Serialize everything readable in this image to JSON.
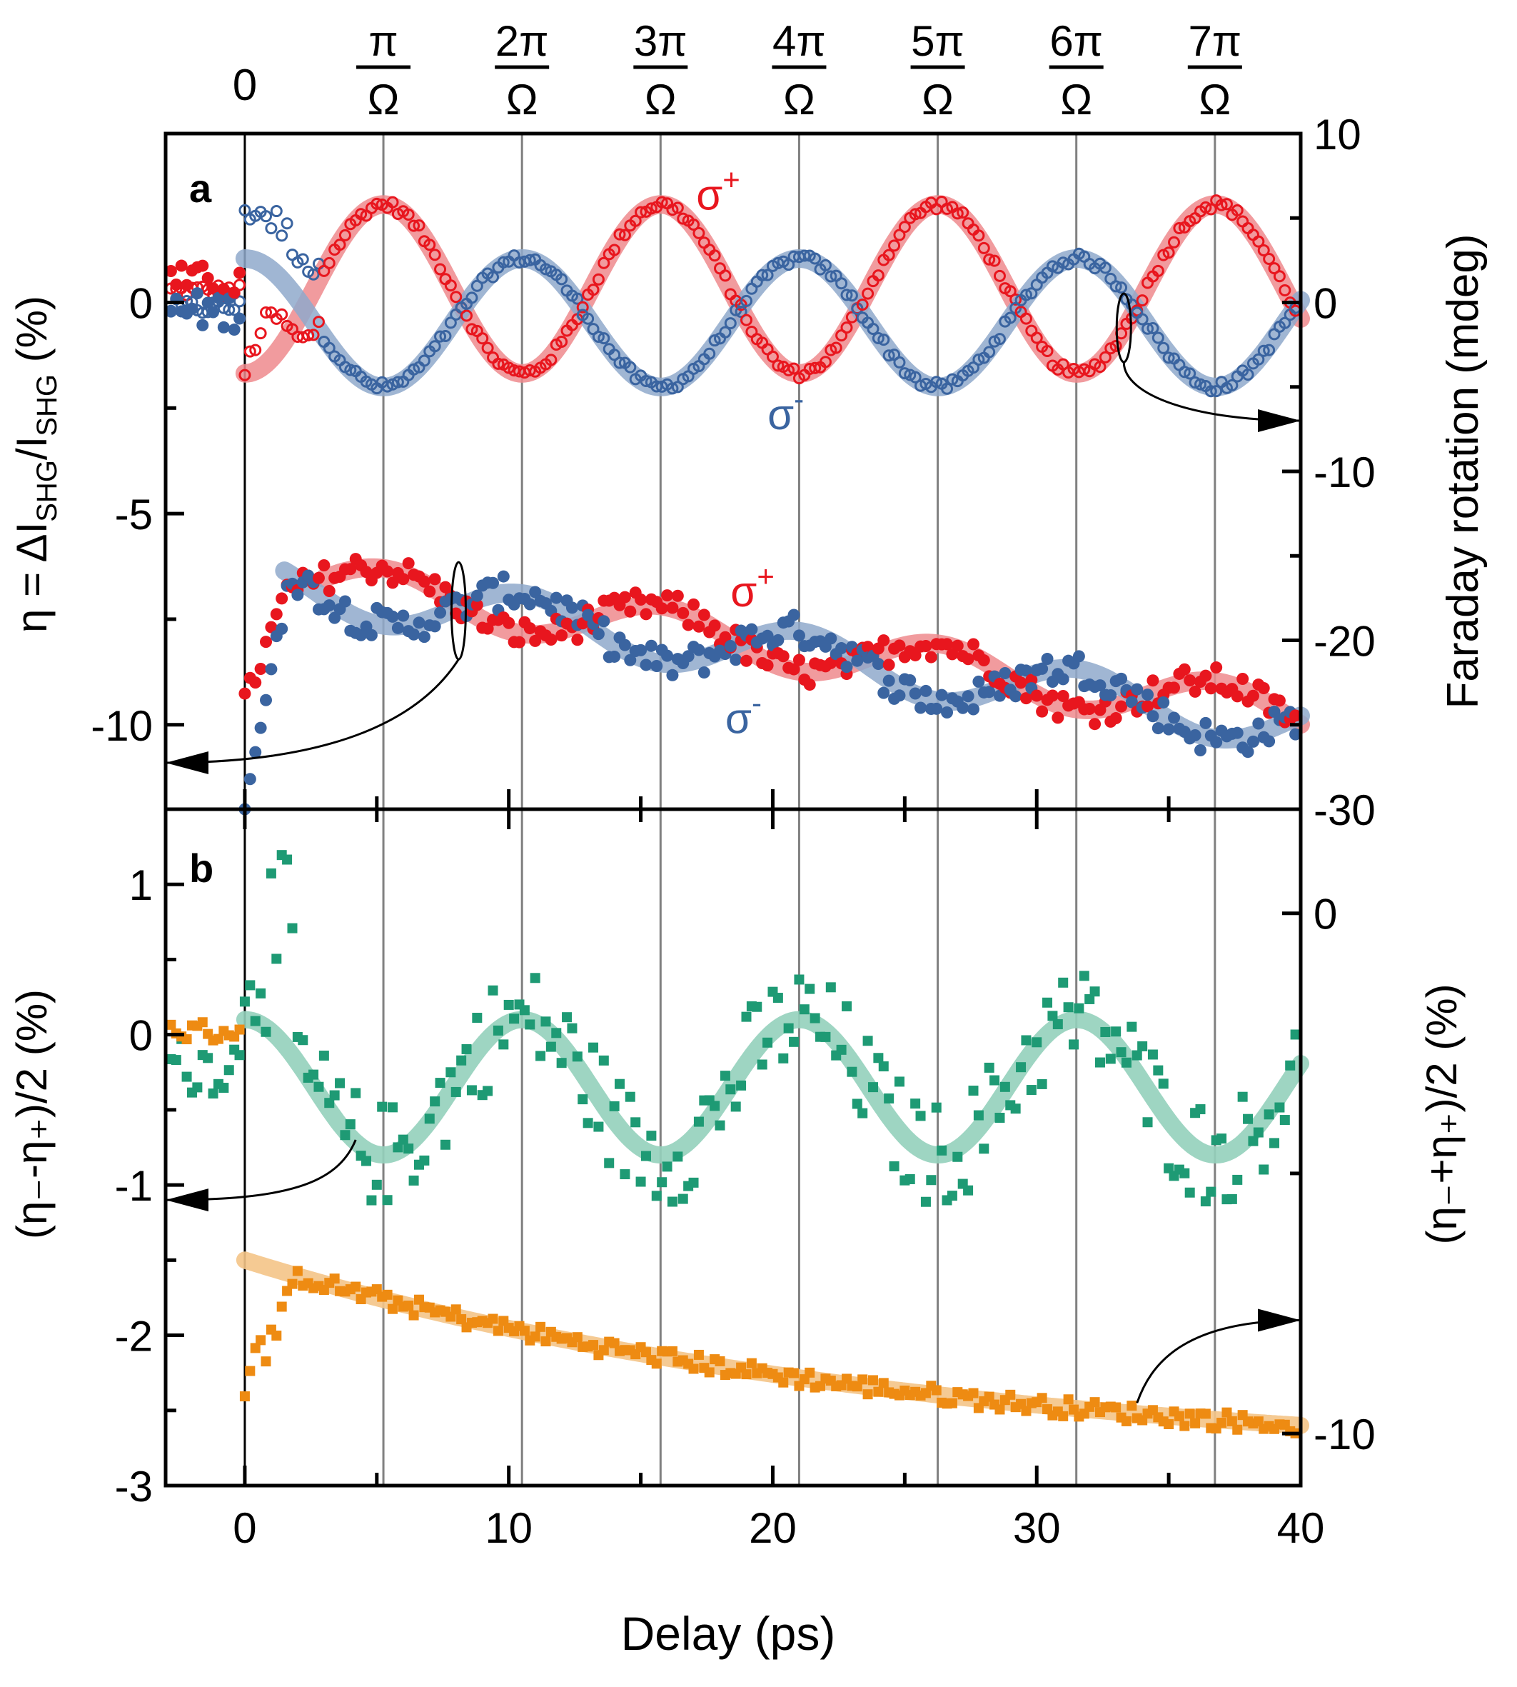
{
  "colors": {
    "sigma_plus": "#e8161e",
    "sigma_minus": "#3a64a0",
    "difference": "#1e9a74",
    "sum": "#ee8b12",
    "sigma_plus_fit": "#ef8a8d",
    "sigma_minus_fit": "#8fa9cb",
    "difference_fit": "#93d0bb",
    "sum_fit": "#f4c487",
    "axis": "#000000",
    "guide": "#808080"
  },
  "chart_data": [
    {
      "panel": "a",
      "type": "scatter",
      "panel_label": "a",
      "xlabel": "Delay (ps)",
      "ylabel_left_parts": [
        "η = ΔI",
        "SHG",
        "/I",
        "SHG",
        " (%)"
      ],
      "ylabel_right": "Faraday rotation (mdeg)",
      "xlim": [
        -3,
        40
      ],
      "ylim_left": [
        -12,
        4
      ],
      "ylim_right": [
        -30,
        10
      ],
      "yticks_left": [
        0,
        -5,
        -10
      ],
      "yticks_right": [
        10,
        0,
        -10,
        -20,
        -30
      ],
      "top_axis_labels": [
        {
          "num": "0",
          "den": "",
          "x": 0
        },
        {
          "num": "π",
          "den": "Ω",
          "x": 5.25
        },
        {
          "num": "2π",
          "den": "Ω",
          "x": 10.5
        },
        {
          "num": "3π",
          "den": "Ω",
          "x": 15.75
        },
        {
          "num": "4π",
          "den": "Ω",
          "x": 21.0
        },
        {
          "num": "5π",
          "den": "Ω",
          "x": 26.25
        },
        {
          "num": "6π",
          "den": "Ω",
          "x": 31.5
        },
        {
          "num": "7π",
          "den": "Ω",
          "x": 36.75
        }
      ],
      "guide_lines_x": [
        0,
        5.25,
        10.5,
        15.75,
        21.0,
        26.25,
        31.5,
        36.75
      ],
      "annotations": [
        {
          "text": "σ",
          "sup": "+",
          "x": 17.1,
          "y": 2.2,
          "series": "sigma_plus"
        },
        {
          "text": "σ",
          "sup": "-",
          "x": 19.8,
          "y": -3.0,
          "series": "sigma_minus"
        },
        {
          "text": "σ",
          "sup": "+",
          "x": 18.4,
          "y": -7.2,
          "series": "sigma_plus"
        },
        {
          "text": "σ",
          "sup": "-",
          "x": 18.2,
          "y": -10.2,
          "series": "sigma_minus"
        }
      ],
      "series": [
        {
          "name": "σ+ Faraday rotation",
          "axis": "right",
          "marker": "open-circle",
          "fit": {
            "offset": 0.8,
            "amp": -5.0,
            "omega": 0.598,
            "phase": 0.0,
            "decay": 0.0
          }
        },
        {
          "name": "σ- Faraday rotation",
          "axis": "right",
          "marker": "open-circle",
          "fit": {
            "offset": -1.2,
            "amp": 3.8,
            "omega": 0.598,
            "phase": 0.0,
            "decay": 0.0
          }
        },
        {
          "name": "σ+ η",
          "axis": "left",
          "marker": "filled-circle",
          "fit": {
            "base": -6.4,
            "slope": -0.085,
            "amp": -0.55,
            "omega": 0.598
          }
        },
        {
          "name": "σ- η",
          "axis": "left",
          "marker": "filled-circle",
          "fit": {
            "base": -6.6,
            "slope": -0.085,
            "amp": 0.6,
            "omega": 0.598
          }
        }
      ]
    },
    {
      "panel": "b",
      "type": "scatter",
      "panel_label": "b",
      "ylabel_left": "(η₋-η₊)/2 (%)",
      "ylabel_right": "(η₋+η₊)/2 (%)",
      "xlim": [
        -3,
        40
      ],
      "xticks": [
        0,
        10,
        20,
        30,
        40
      ],
      "ylim_left": [
        -3,
        1.5
      ],
      "yticks_left": [
        1,
        0,
        -1,
        -2,
        -3
      ],
      "ylim_right": [
        -11,
        2
      ],
      "yticks_right": [
        0,
        -10
      ],
      "series": [
        {
          "name": "(η₋-η₊)/2",
          "axis": "left",
          "marker": "filled-square",
          "fit": {
            "offset": -0.35,
            "amp": 0.45,
            "omega": 0.598,
            "decay": 0.0
          }
        },
        {
          "name": "(η₋+η₊)/2",
          "axis": "left",
          "marker": "filled-square",
          "fit": {
            "start": -1.5,
            "end": -2.6
          }
        }
      ]
    }
  ]
}
